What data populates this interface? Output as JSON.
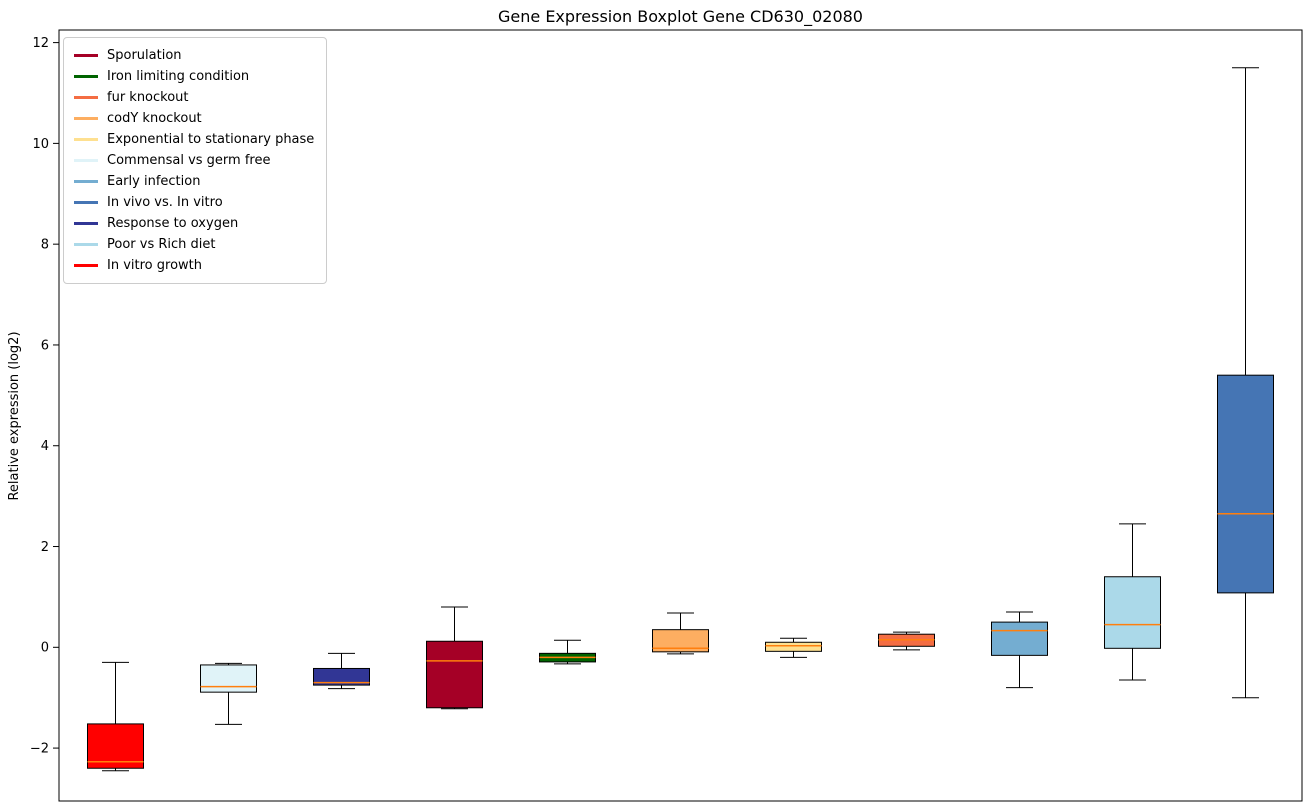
{
  "chart_data": {
    "type": "boxplot",
    "title": "Gene Expression Boxplot Gene CD630_02080",
    "ylabel": "Relative expression (log2)",
    "xlabel": "",
    "ylim": [
      -3.05,
      12.25
    ],
    "yticks": [
      -2,
      0,
      2,
      4,
      6,
      8,
      10,
      12
    ],
    "grid": false,
    "legend_position": "upper-left",
    "frame_color": "#000000",
    "whisker_color": "#000000",
    "box_edge_color": "#000000",
    "median_color": "#ff7f0e",
    "legend": [
      {
        "label": "Sporulation",
        "color": "#a50026"
      },
      {
        "label": "Iron limiting condition",
        "color": "#006400"
      },
      {
        "label": "fur knockout",
        "color": "#f46d43"
      },
      {
        "label": "codY knockout",
        "color": "#fdae61"
      },
      {
        "label": "Exponential to stationary phase",
        "color": "#fee090"
      },
      {
        "label": "Commensal vs germ free",
        "color": "#e0f3f8"
      },
      {
        "label": "Early infection",
        "color": "#74add1"
      },
      {
        "label": "In vivo vs. In vitro",
        "color": "#4575b4"
      },
      {
        "label": "Response to oxygen",
        "color": "#313695"
      },
      {
        "label": "Poor vs Rich diet",
        "color": "#abd9e9"
      },
      {
        "label": "In vitro growth",
        "color": "#ff0000"
      }
    ],
    "series": [
      {
        "name": "In vitro growth",
        "color": "#ff0000",
        "whisker_low": -2.45,
        "q1": -2.4,
        "median": -2.27,
        "q3": -1.52,
        "whisker_high": -0.3
      },
      {
        "name": "Commensal vs germ free",
        "color": "#e0f3f8",
        "whisker_low": -1.53,
        "q1": -0.89,
        "median": -0.78,
        "q3": -0.35,
        "whisker_high": -0.32
      },
      {
        "name": "Response to oxygen",
        "color": "#313695",
        "whisker_low": -0.82,
        "q1": -0.75,
        "median": -0.7,
        "q3": -0.42,
        "whisker_high": -0.12
      },
      {
        "name": "Sporulation",
        "color": "#a50026",
        "whisker_low": -1.22,
        "q1": -1.2,
        "median": -0.27,
        "q3": 0.12,
        "whisker_high": 0.8
      },
      {
        "name": "Iron limiting condition",
        "color": "#006400",
        "whisker_low": -0.33,
        "q1": -0.29,
        "median": -0.2,
        "q3": -0.12,
        "whisker_high": 0.14
      },
      {
        "name": "codY knockout",
        "color": "#fdae61",
        "whisker_low": -0.13,
        "q1": -0.09,
        "median": -0.02,
        "q3": 0.35,
        "whisker_high": 0.68
      },
      {
        "name": "Exponential to stationary phase",
        "color": "#fee090",
        "whisker_low": -0.2,
        "q1": -0.08,
        "median": 0.03,
        "q3": 0.1,
        "whisker_high": 0.18
      },
      {
        "name": "fur knockout",
        "color": "#f46d43",
        "whisker_low": -0.05,
        "q1": 0.02,
        "median": 0.15,
        "q3": 0.26,
        "whisker_high": 0.3
      },
      {
        "name": "Early infection",
        "color": "#74add1",
        "whisker_low": -0.8,
        "q1": -0.16,
        "median": 0.33,
        "q3": 0.5,
        "whisker_high": 0.7
      },
      {
        "name": "Poor vs Rich diet",
        "color": "#abd9e9",
        "whisker_low": -0.65,
        "q1": -0.02,
        "median": 0.45,
        "q3": 1.4,
        "whisker_high": 2.45
      },
      {
        "name": "In vivo vs. In vitro",
        "color": "#4575b4",
        "whisker_low": -1.0,
        "q1": 1.08,
        "median": 2.65,
        "q3": 5.4,
        "whisker_high": 11.5
      }
    ]
  }
}
